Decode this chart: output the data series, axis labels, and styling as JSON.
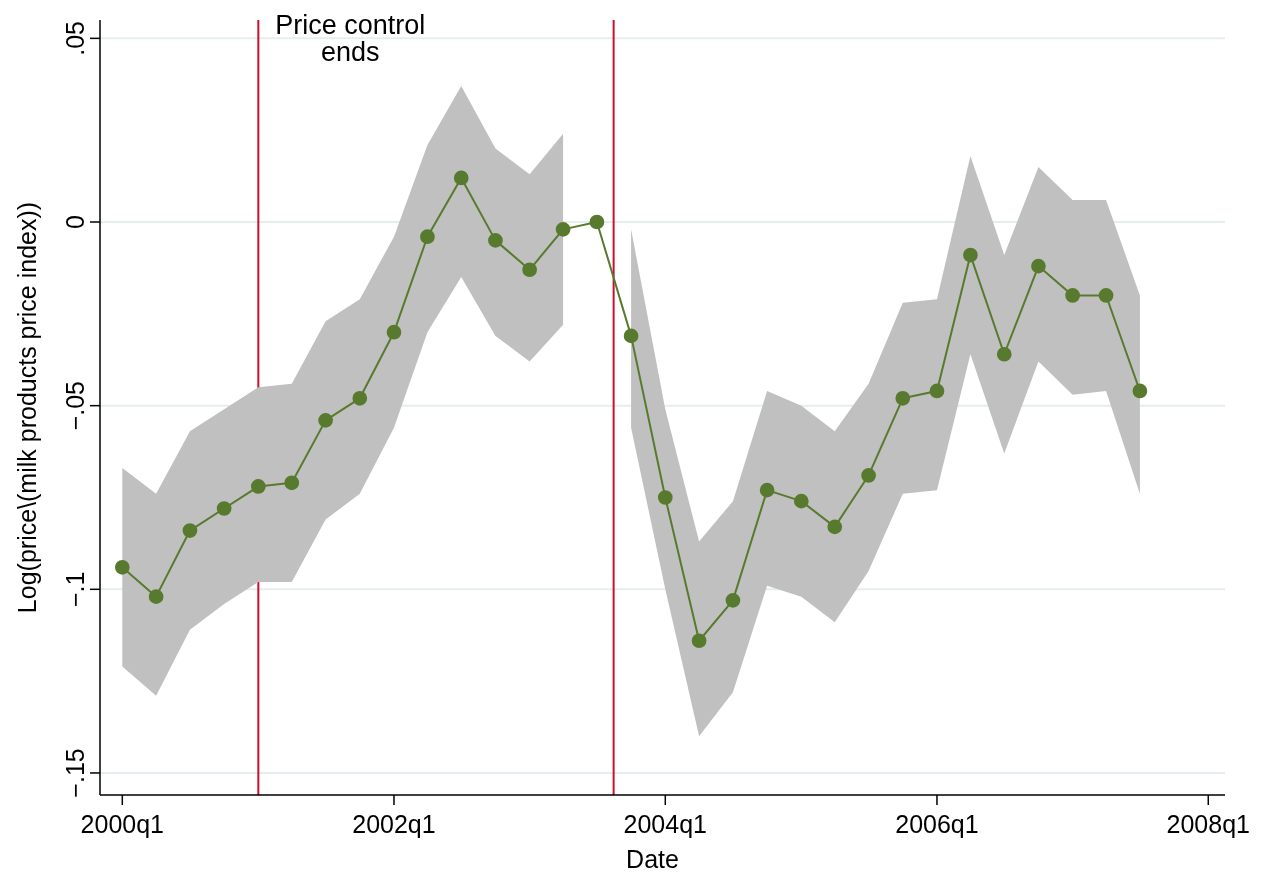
{
  "chart_data": {
    "type": "line",
    "xlabel": "Date",
    "ylabel": "Log(price\\(milk products price index))",
    "x": [
      "2000-01",
      "2000-04",
      "2000-07",
      "2000-10",
      "2001-01",
      "2001-04",
      "2001-07",
      "2001-10",
      "2002-01",
      "2002-04",
      "2002-07",
      "2002-10",
      "2003-01",
      "2003-04",
      "2003-07",
      "2003-10",
      "2004-01",
      "2004-04",
      "2004-07",
      "2004-10",
      "2005-01",
      "2005-04",
      "2005-07",
      "2005-10",
      "2006-01",
      "2006-04",
      "2006-07",
      "2006-10",
      "2007-01",
      "2007-04",
      "2007-07"
    ],
    "series": [
      {
        "color": "#587a2e",
        "values": [
          -0.094,
          -0.102,
          -0.084,
          -0.078,
          -0.072,
          -0.071,
          -0.054,
          -0.048,
          -0.03,
          -0.004,
          0.012,
          -0.005,
          -0.013,
          -0.002,
          0,
          -0.031,
          -0.075,
          -0.114,
          -0.103,
          -0.073,
          -0.076,
          -0.083,
          -0.069,
          -0.048,
          -0.046,
          -0.009,
          -0.036,
          -0.012,
          -0.02,
          -0.02,
          -0.046
        ],
        "upper": [
          -0.067,
          -0.074,
          -0.057,
          -0.051,
          -0.045,
          -0.044,
          -0.027,
          -0.021,
          -0.004,
          0.021,
          0.037,
          0.02,
          0.013,
          0.024,
          null,
          -0.002,
          -0.051,
          -0.087,
          -0.076,
          -0.046,
          -0.05,
          -0.057,
          -0.044,
          -0.022,
          -0.021,
          0.018,
          -0.009,
          0.015,
          0.006,
          0.006,
          -0.02
        ],
        "lower": [
          -0.121,
          -0.129,
          -0.111,
          -0.104,
          -0.098,
          -0.098,
          -0.081,
          -0.074,
          -0.056,
          -0.03,
          -0.015,
          -0.031,
          -0.038,
          -0.028,
          null,
          -0.056,
          -0.1,
          -0.14,
          -0.128,
          -0.099,
          -0.102,
          -0.109,
          -0.095,
          -0.074,
          -0.073,
          -0.036,
          -0.063,
          -0.038,
          -0.047,
          -0.046,
          -0.074
        ]
      }
    ],
    "xlim": [
      "1999-11-02",
      "2008-02-15"
    ],
    "xticks": [
      {
        "value": "2000-01",
        "label": "2000q1"
      },
      {
        "value": "2002-01",
        "label": "2002q1"
      },
      {
        "value": "2004-01",
        "label": "2004q1"
      },
      {
        "value": "2006-01",
        "label": "2006q1"
      },
      {
        "value": "2008-01",
        "label": "2008q1"
      }
    ],
    "ylim": [
      -0.156,
      0.055
    ],
    "yticks": [
      {
        "value": -0.15,
        "label": "−.15"
      },
      {
        "value": -0.1,
        "label": "−.1"
      },
      {
        "value": -0.05,
        "label": "−.05"
      },
      0,
      {
        "value": 0.05,
        "label": ".05"
      }
    ],
    "grid": "y",
    "marker": "circle",
    "line_style": "solid",
    "ref_lines": [
      {
        "axis": "x",
        "value": "2001-01",
        "label": "Price control ends",
        "color": "#c8102e"
      },
      {
        "axis": "x",
        "value": "2003-08-15",
        "color": "#c8102e"
      }
    ]
  }
}
